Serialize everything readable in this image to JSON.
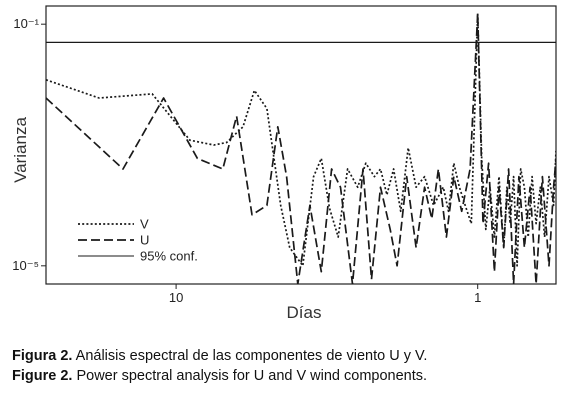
{
  "chart_data": {
    "type": "line",
    "xlabel": "Días",
    "ylabel": "Varianza",
    "x_scale": "log",
    "x_reversed": true,
    "y_scale": "log",
    "xlim": [
      27,
      0.55
    ],
    "ylim": [
      5e-06,
      0.2
    ],
    "x_ticks": [
      {
        "value": 10,
        "label": "10"
      },
      {
        "value": 1,
        "label": "1"
      }
    ],
    "y_ticks": [
      {
        "value": 0.1,
        "label": "10⁻¹"
      },
      {
        "value": 1e-05,
        "label": "10⁻⁵"
      }
    ],
    "confidence_level": {
      "label": "95% conf.",
      "value": 0.05
    },
    "legend_position": "bottom-left",
    "series": [
      {
        "name": "V",
        "style": "dotted",
        "x": [
          27,
          18,
          12,
          9,
          7.5,
          6.8,
          6,
          5.5,
          5,
          4.5,
          4.2,
          3.8,
          3.5,
          3.3,
          3.1,
          2.9,
          2.7,
          2.5,
          2.35,
          2.2,
          2.1,
          2.0,
          1.9,
          1.8,
          1.7,
          1.6,
          1.5,
          1.4,
          1.3,
          1.25,
          1.2,
          1.15,
          1.1,
          1.05,
          1.0,
          0.97,
          0.94,
          0.91,
          0.88,
          0.85,
          0.82,
          0.8,
          0.78,
          0.76,
          0.74,
          0.72,
          0.7,
          0.68,
          0.66,
          0.64,
          0.62,
          0.6,
          0.58,
          0.56,
          0.55
        ],
        "values": [
          0.012,
          0.006,
          0.007,
          0.0012,
          0.001,
          0.0011,
          0.002,
          0.008,
          0.004,
          0.0001,
          2e-05,
          1e-05,
          0.0003,
          0.0006,
          9e-05,
          3e-05,
          0.0004,
          0.0002,
          0.0005,
          0.0003,
          0.0004,
          0.00015,
          0.0004,
          8e-05,
          0.0009,
          0.0002,
          0.0003,
          0.0001,
          0.0002,
          8e-05,
          0.0005,
          0.0002,
          0.0001,
          5e-05,
          0.15,
          0.0006,
          4e-05,
          0.0002,
          3e-05,
          0.0003,
          2e-05,
          0.0002,
          5e-05,
          0.0003,
          1e-05,
          0.0004,
          0.0002,
          3e-05,
          0.0003,
          5e-05,
          0.0002,
          3e-05,
          0.0003,
          0.0001,
          0.0008
        ]
      },
      {
        "name": "U",
        "style": "dashed",
        "x": [
          27,
          15,
          11,
          8.5,
          7,
          6.3,
          5.6,
          5.0,
          4.6,
          4.3,
          3.95,
          3.6,
          3.3,
          3.05,
          2.85,
          2.6,
          2.4,
          2.25,
          2.1,
          1.95,
          1.85,
          1.72,
          1.6,
          1.5,
          1.42,
          1.35,
          1.27,
          1.2,
          1.13,
          1.06,
          1.0,
          0.96,
          0.92,
          0.88,
          0.85,
          0.82,
          0.79,
          0.76,
          0.73,
          0.7,
          0.67,
          0.64,
          0.61,
          0.58,
          0.56,
          0.55
        ],
        "values": [
          0.006,
          0.0004,
          0.006,
          0.0006,
          0.0004,
          0.003,
          7e-05,
          0.0001,
          0.002,
          0.0003,
          5e-06,
          0.0001,
          8e-06,
          0.0004,
          0.0002,
          5e-06,
          0.0004,
          6e-06,
          0.0002,
          4e-05,
          1e-05,
          0.0003,
          2e-05,
          0.0002,
          6e-05,
          0.0004,
          3e-05,
          0.0003,
          8e-05,
          0.0004,
          0.15,
          5e-05,
          0.0005,
          8e-06,
          0.0002,
          2e-05,
          0.0004,
          5e-06,
          0.0003,
          2e-05,
          0.0002,
          5e-06,
          0.0003,
          1e-05,
          0.0002,
          0.0006
        ]
      },
      {
        "name": "95% conf.",
        "style": "solid",
        "x": [
          27,
          0.55
        ],
        "values": [
          0.05,
          0.05
        ]
      }
    ]
  },
  "captions": [
    {
      "bold": "Figura 2.",
      "text": " Análisis espectral de las componentes de viento U y V."
    },
    {
      "bold": "Figure 2.",
      "text": " Power spectral analysis for U and V wind components."
    }
  ]
}
